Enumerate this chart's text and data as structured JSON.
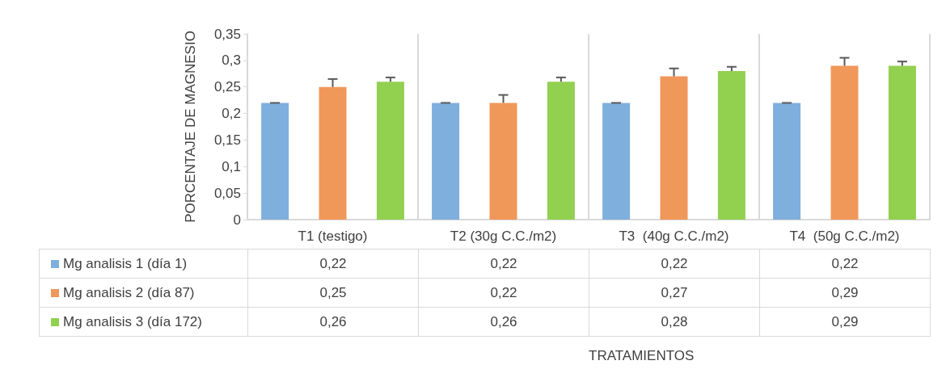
{
  "chart_data": {
    "type": "bar",
    "annotations": [
      "TRATAMIENTOS"
    ],
    "ylabel": "PORCENTAJE DE MAGNESIO",
    "categories": [
      "T1 (testigo)",
      "T2 (30g C.C./m2)",
      "T3  (40g C.C./m2)",
      "T4  (50g C.C./m2)"
    ],
    "series": [
      {
        "name": "Mg analisis 1 (día 1)",
        "color": "#7eafdd",
        "values": [
          0.22,
          0.22,
          0.22,
          0.22
        ],
        "errors": [
          0,
          0,
          0,
          0
        ],
        "value_labels": [
          "0,22",
          "0,22",
          "0,22",
          "0,22"
        ]
      },
      {
        "name": "Mg analisis 2 (día 87)",
        "color": "#f0975a",
        "values": [
          0.25,
          0.22,
          0.27,
          0.29
        ],
        "errors": [
          0.015,
          0.015,
          0.015,
          0.015
        ],
        "value_labels": [
          "0,25",
          "0,22",
          "0,27",
          "0,29"
        ]
      },
      {
        "name": "Mg analisis 3 (día 172)",
        "color": "#92d050",
        "values": [
          0.26,
          0.26,
          0.28,
          0.29
        ],
        "errors": [
          0.008,
          0.008,
          0.008,
          0.008
        ],
        "value_labels": [
          "0,26",
          "0,26",
          "0,28",
          "0,29"
        ]
      }
    ],
    "ylim": [
      0,
      0.35
    ],
    "yticks": [
      0,
      {
        "value": 0.05,
        "label": "0,05"
      },
      {
        "value": 0.1,
        "label": "0,1"
      },
      {
        "value": 0.15,
        "label": "0,15"
      },
      {
        "value": 0.2,
        "label": "0,2"
      },
      {
        "value": 0.25,
        "label": "0,25"
      },
      {
        "value": 0.3,
        "label": "0,3"
      },
      {
        "value": 0.35,
        "label": "0,35"
      }
    ],
    "grid": "x",
    "legend": "bottom"
  }
}
